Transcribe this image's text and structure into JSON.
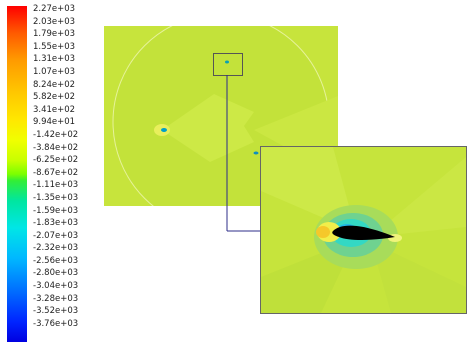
{
  "legend": {
    "ticks": [
      "2.27e+03",
      "2.03e+03",
      "1.79e+03",
      "1.55e+03",
      "1.31e+03",
      "1.07e+03",
      "8.24e+02",
      "5.82e+02",
      "3.41e+02",
      "9.94e+01",
      "-1.42e+02",
      "-3.84e+02",
      "-6.25e+02",
      "-8.67e+02",
      "-1.11e+03",
      "-1.35e+03",
      "-1.59e+03",
      "-1.83e+03",
      "-2.07e+03",
      "-2.32e+03",
      "-2.56e+03",
      "-2.80e+03",
      "-3.04e+03",
      "-3.28e+03",
      "-3.52e+03",
      "-3.76e+03"
    ],
    "colors": {
      "max": "#ff0000",
      "high": "#ff9a00",
      "mid_high": "#f0ff00",
      "mid": "#32ee36",
      "mid_low": "#00e6e6",
      "low": "#006cff",
      "min": "#0000e0"
    }
  },
  "field": {
    "background": "#c7e43c",
    "far_field": "#c3e23a",
    "high_pressure": "#f4d42a",
    "low_pressure": "#33d8c4",
    "airfoil": "#000000"
  }
}
